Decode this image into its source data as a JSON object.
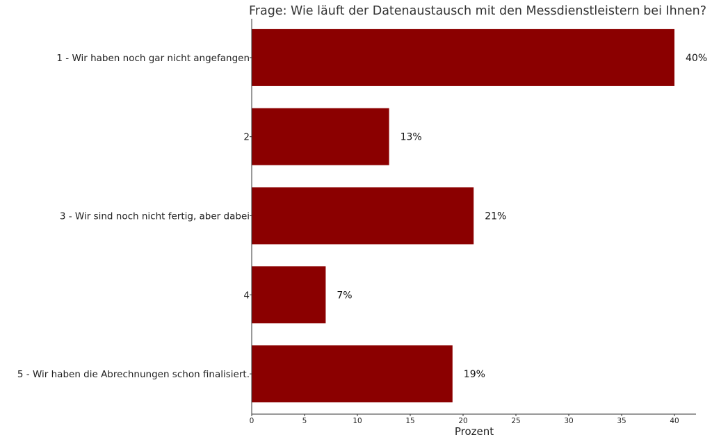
{
  "chart_data": {
    "type": "bar",
    "orientation": "horizontal",
    "title": "Frage: Wie läuft der Datenaustausch mit den Messdienstleistern bei Ihnen?",
    "xlabel": "Prozent",
    "ylabel": "",
    "categories": [
      "1 - Wir haben noch gar nicht angefangen",
      "2",
      "3 - Wir sind noch nicht fertig, aber dabei",
      "4",
      "5 - Wir haben die Abrechnungen schon finalisiert."
    ],
    "values": [
      40,
      13,
      21,
      7,
      19
    ],
    "data_labels": [
      "40%",
      "13%",
      "21%",
      "7%",
      "19%"
    ],
    "xlim": [
      0,
      42
    ],
    "xticks": [
      0,
      5,
      10,
      15,
      20,
      25,
      30,
      35,
      40
    ],
    "grid": false,
    "legend": "none",
    "bar_color": "#8b0000"
  }
}
